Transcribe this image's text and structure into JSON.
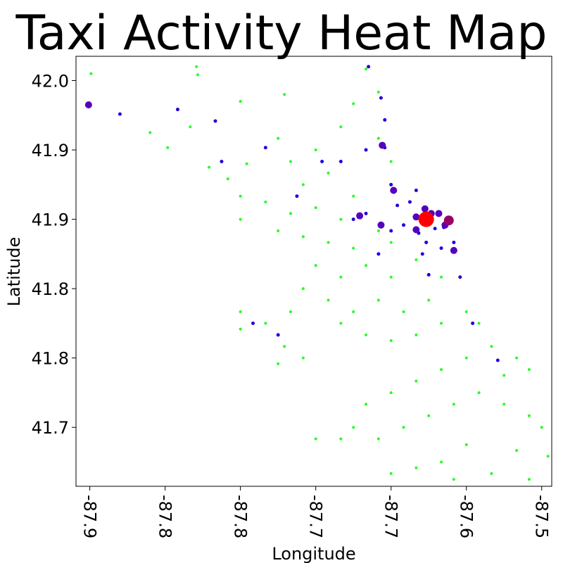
{
  "chart_data": {
    "type": "scatter",
    "title": "Taxi Activity Heat Map",
    "x_label": "Longitude",
    "y_label": "Latitude",
    "xlim": [
      -87.911,
      -87.532
    ],
    "ylim": [
      41.649,
      42.021
    ],
    "xticks": [
      {
        "value": -87.9,
        "label": "-87.9"
      },
      {
        "value": -87.84,
        "label": "-87.8"
      },
      {
        "value": -87.78,
        "label": "-87.8"
      },
      {
        "value": -87.72,
        "label": "-87.7"
      },
      {
        "value": -87.66,
        "label": "-87.7"
      },
      {
        "value": -87.6,
        "label": "-87.6"
      },
      {
        "value": -87.54,
        "label": "-87.5"
      }
    ],
    "yticks": [
      {
        "value": 42.0,
        "label": "42.0"
      },
      {
        "value": 41.94,
        "label": "41.9"
      },
      {
        "value": 41.88,
        "label": "41.9"
      },
      {
        "value": 41.82,
        "label": "41.8"
      },
      {
        "value": 41.76,
        "label": "41.8"
      },
      {
        "value": 41.7,
        "label": "41.7"
      }
    ],
    "series": [
      {
        "color": "#22ff22",
        "size": 2,
        "x": [
          -87.899,
          -87.815,
          -87.814,
          -87.78,
          -87.745,
          -87.82,
          -87.852,
          -87.838,
          -87.805,
          -87.79,
          -87.775,
          -87.75,
          -87.74,
          -87.73,
          -87.72,
          -87.71,
          -87.7,
          -87.69,
          -87.68,
          -87.67,
          -87.67,
          -87.66,
          -87.69,
          -87.7,
          -87.72,
          -87.74,
          -87.76,
          -87.78,
          -87.78,
          -87.75,
          -87.73,
          -87.71,
          -87.69,
          -87.67,
          -87.66,
          -87.72,
          -87.7,
          -87.68,
          -87.66,
          -87.64,
          -87.62,
          -87.63,
          -87.65,
          -87.67,
          -87.69,
          -87.71,
          -87.73,
          -87.78,
          -87.78,
          -87.76,
          -87.74,
          -87.745,
          -87.75,
          -87.73,
          -87.7,
          -87.68,
          -87.66,
          -87.64,
          -87.62,
          -87.6,
          -87.59,
          -87.58,
          -87.56,
          -87.55,
          -87.57,
          -87.6,
          -87.62,
          -87.64,
          -87.66,
          -87.68,
          -87.69,
          -87.7,
          -87.72,
          -87.67,
          -87.65,
          -87.63,
          -87.61,
          -87.59,
          -87.57,
          -87.55,
          -87.54,
          -87.535,
          -87.56,
          -87.6,
          -87.62,
          -87.64,
          -87.66,
          -87.61,
          -87.58,
          -87.55
        ],
        "y": [
          42.006,
          42.012,
          42.005,
          41.982,
          41.988,
          41.96,
          41.955,
          41.942,
          41.925,
          41.915,
          41.928,
          41.95,
          41.93,
          41.91,
          41.94,
          41.92,
          41.96,
          41.98,
          42.01,
          41.99,
          41.95,
          41.93,
          41.9,
          41.88,
          41.89,
          41.885,
          41.895,
          41.9,
          41.88,
          41.87,
          41.865,
          41.86,
          41.855,
          41.87,
          41.86,
          41.84,
          41.83,
          41.84,
          41.83,
          41.845,
          41.83,
          41.81,
          41.8,
          41.81,
          41.8,
          41.81,
          41.82,
          41.8,
          41.785,
          41.79,
          41.8,
          41.77,
          41.755,
          41.76,
          41.79,
          41.78,
          41.775,
          41.78,
          41.79,
          41.8,
          41.79,
          41.77,
          41.76,
          41.75,
          41.745,
          41.76,
          41.75,
          41.74,
          41.73,
          41.72,
          41.7,
          41.69,
          41.69,
          41.69,
          41.7,
          41.71,
          41.72,
          41.73,
          41.72,
          41.71,
          41.7,
          41.675,
          41.68,
          41.685,
          41.67,
          41.665,
          41.66,
          41.655,
          41.66,
          41.655
        ]
      },
      {
        "color": "#2200dd",
        "size": 2.5,
        "x": [
          -87.876,
          -87.83,
          -87.8,
          -87.795,
          -87.76,
          -87.735,
          -87.715,
          -87.7,
          -87.68,
          -87.665,
          -87.665,
          -87.66,
          -87.655,
          -87.645,
          -87.64,
          -87.65,
          -87.638,
          -87.632,
          -87.625,
          -87.618,
          -87.62,
          -87.635,
          -87.61,
          -87.67,
          -87.66,
          -87.68,
          -87.69,
          -87.63,
          -87.595,
          -87.575,
          -87.605,
          -87.77,
          -87.75,
          -87.678,
          -87.668
        ],
        "y": [
          41.971,
          41.975,
          41.965,
          41.93,
          41.942,
          41.9,
          41.93,
          41.93,
          41.94,
          41.966,
          41.942,
          41.91,
          41.892,
          41.895,
          41.905,
          41.875,
          41.868,
          41.86,
          41.872,
          41.873,
          41.855,
          41.85,
          41.86,
          41.85,
          41.87,
          41.885,
          41.88,
          41.832,
          41.79,
          41.758,
          41.83,
          41.79,
          41.78,
          42.012,
          41.985
        ]
      },
      {
        "color": "#5500bb",
        "size": 5,
        "x": [
          -87.901,
          -87.667,
          -87.658,
          -87.685,
          -87.668,
          -87.64,
          -87.64,
          -87.633,
          -87.628,
          -87.622,
          -87.617,
          -87.61
        ],
        "y": [
          41.979,
          41.944,
          41.905,
          41.883,
          41.875,
          41.882,
          41.871,
          41.889,
          41.885,
          41.885,
          41.875,
          41.853
        ]
      },
      {
        "color": "#990066",
        "size": 7,
        "x": [
          -87.614
        ],
        "y": [
          41.879
        ]
      },
      {
        "color": "#ff0000",
        "size": 11,
        "x": [
          -87.632
        ],
        "y": [
          41.88
        ]
      }
    ]
  }
}
